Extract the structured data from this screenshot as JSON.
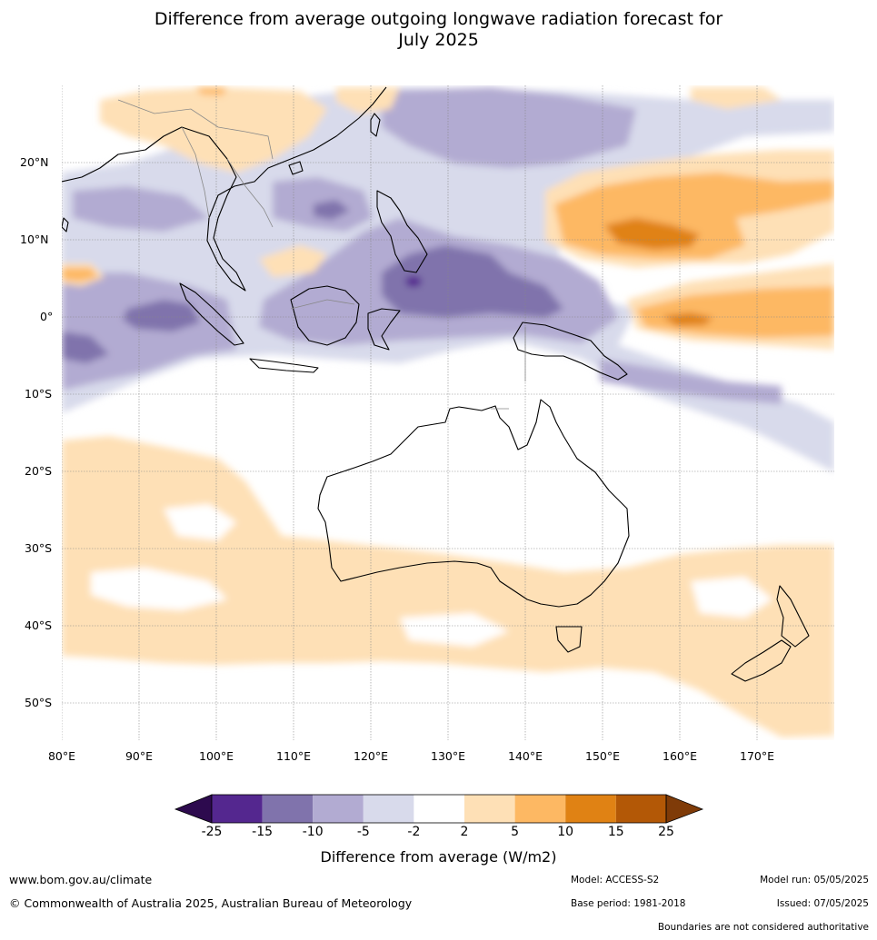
{
  "title_line1": "Difference from average outgoing longwave radiation forecast for",
  "title_line2": "July 2025",
  "lat_labels": [
    "20°N",
    "10°N",
    "0°",
    "10°S",
    "20°S",
    "30°S",
    "40°S",
    "50°S"
  ],
  "lon_labels": [
    "80°E",
    "90°E",
    "100°E",
    "110°E",
    "120°E",
    "130°E",
    "140°E",
    "150°E",
    "160°E",
    "170°E"
  ],
  "colorbar": {
    "ticks": [
      "-25",
      "-15",
      "-10",
      "-5",
      "-2",
      "2",
      "5",
      "10",
      "15",
      "25"
    ],
    "colors": [
      "#2d0a4e",
      "#54278f",
      "#8073ac",
      "#b2abd2",
      "#d8daeb",
      "#ffffff",
      "#fee0b6",
      "#fdb863",
      "#e08214",
      "#b35806",
      "#7f3b08"
    ],
    "title": "Difference from average (W/m2)"
  },
  "footer": {
    "website": "www.bom.gov.au/climate",
    "copyright": "© Commonwealth of Australia 2025, Australian Bureau of Meteorology",
    "model": "Model: ACCESS-S2",
    "base_period": "Base period: 1981-2018",
    "model_run": "Model run: 05/05/2025",
    "issued": "Issued: 07/05/2025",
    "disclaimer": "Boundaries are not considered authoritative"
  }
}
